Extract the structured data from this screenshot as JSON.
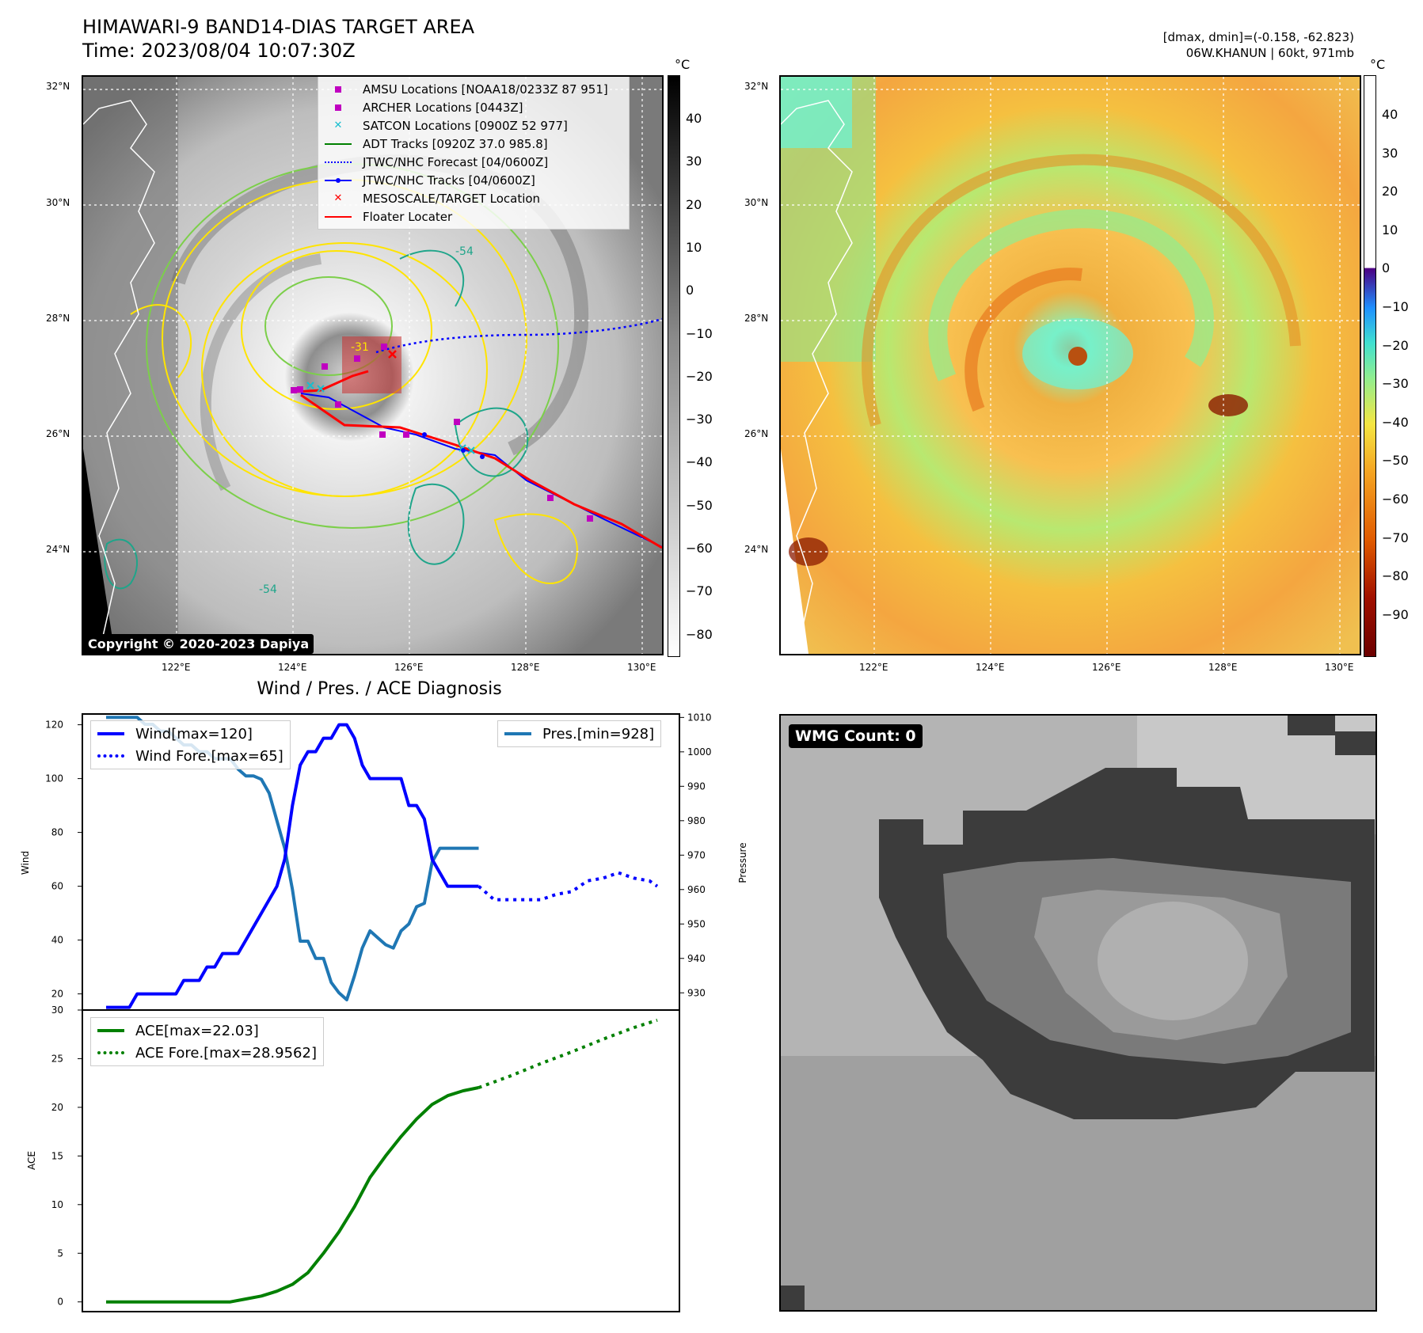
{
  "header": {
    "title_line1": "HIMAWARI-9 BAND14-DIAS TARGET AREA",
    "title_line2": "Time: 2023/08/04 10:07:30Z",
    "right_line1": "[dmax, dmin]=(-0.158, -62.823)",
    "right_line2": "06W.KHANUN | 60kt, 971mb"
  },
  "map": {
    "lat_labels": [
      "32°N",
      "30°N",
      "28°N",
      "26°N",
      "24°N"
    ],
    "lon_labels": [
      "122°E",
      "124°E",
      "126°E",
      "128°E",
      "130°E"
    ],
    "copyright": "Copyright © 2020-2023 Dapiya",
    "contour_labels": [
      "-31",
      "-54"
    ],
    "legend": [
      {
        "label": "AMSU Locations [NOAA18/0233Z 87 951]",
        "color": "#c000c0",
        "symbol": "square"
      },
      {
        "label": "ARCHER Locations [0443Z]",
        "color": "#c000c0",
        "symbol": "square"
      },
      {
        "label": "SATCON Locations [0900Z 52 977]",
        "color": "#17becf",
        "symbol": "x"
      },
      {
        "label": "ADT Tracks [0920Z 37.0 985.8]",
        "color": "#008000",
        "symbol": "line"
      },
      {
        "label": "JTWC/NHC Forecast [04/0600Z]",
        "color": "#0000ff",
        "symbol": "dotted"
      },
      {
        "label": "JTWC/NHC Tracks [04/0600Z]",
        "color": "#0000ff",
        "symbol": "line-dot"
      },
      {
        "label": "MESOSCALE/TARGET Location",
        "color": "#ff0000",
        "symbol": "x"
      },
      {
        "label": "Floater Locater",
        "color": "#ff0000",
        "symbol": "line"
      }
    ]
  },
  "colorbar_gray": {
    "unit": "°C",
    "ticks": [
      "40",
      "30",
      "20",
      "10",
      "0",
      "−10",
      "−20",
      "−30",
      "−40",
      "−50",
      "−60",
      "−70",
      "−80"
    ]
  },
  "colorbar_color": {
    "unit": "°C",
    "ticks": [
      "40",
      "30",
      "20",
      "10",
      "0",
      "−10",
      "−20",
      "−30",
      "−40",
      "−50",
      "−60",
      "−70",
      "−80",
      "−90"
    ]
  },
  "wmg": {
    "label": "WMG Count: 0"
  },
  "colors": {
    "wind": "#0000ff",
    "pressure": "#1f77b4",
    "ace": "#008000",
    "track_red": "#ff0000",
    "contour_yellow": "#ffe400",
    "contour_green": "#7ccf4a",
    "contour_teal": "#1fa58a"
  },
  "chart_data": [
    {
      "type": "line",
      "title": "Wind / Pres. / ACE Diagnosis",
      "ylabel": "Wind",
      "ylabel_right": "Pressure",
      "ylim": [
        14,
        124
      ],
      "ylim_right": [
        925,
        1011
      ],
      "y_ticks": [
        20,
        40,
        60,
        80,
        100,
        120
      ],
      "y_ticks_right": [
        930,
        940,
        950,
        960,
        970,
        980,
        990,
        1000,
        1010
      ],
      "x": [
        0,
        1,
        2,
        3,
        4,
        5,
        6,
        7,
        8,
        9,
        10,
        11,
        12,
        13,
        14,
        15,
        16,
        17,
        18,
        19,
        20,
        21,
        22,
        23,
        24,
        25,
        26,
        27,
        28,
        29,
        30,
        31,
        32,
        33,
        34,
        35,
        36,
        37,
        38,
        39,
        40,
        41,
        42,
        43,
        44,
        45,
        46,
        47,
        48,
        49,
        50,
        51,
        52,
        53,
        54,
        55,
        56,
        57,
        58,
        59,
        60,
        61,
        62,
        63,
        64,
        65,
        66,
        67,
        68,
        69,
        70,
        71
      ],
      "series": [
        {
          "name": "Wind[max=120]",
          "style": "solid",
          "color": "#0000ff",
          "x": [
            0,
            1,
            2,
            3,
            4,
            5,
            6,
            7,
            8,
            9,
            10,
            11,
            12,
            13,
            14,
            15,
            16,
            17,
            18,
            19,
            20,
            21,
            22,
            23,
            24,
            25,
            26,
            27,
            28,
            29,
            30,
            31,
            32,
            33,
            34,
            35,
            36,
            37,
            38,
            39,
            40,
            41,
            42,
            43,
            44,
            45,
            46,
            47,
            48
          ],
          "values": [
            15,
            15,
            15,
            15,
            20,
            20,
            20,
            20,
            20,
            20,
            25,
            25,
            25,
            30,
            30,
            35,
            35,
            35,
            40,
            45,
            50,
            55,
            60,
            70,
            90,
            105,
            110,
            110,
            115,
            115,
            120,
            120,
            115,
            105,
            100,
            100,
            100,
            100,
            100,
            90,
            90,
            85,
            70,
            65,
            60,
            60,
            60,
            60,
            60
          ]
        },
        {
          "name": "Wind Fore.[max=65]",
          "style": "dotted",
          "color": "#0000ff",
          "x": [
            48,
            50,
            52,
            54,
            56,
            58,
            60,
            62,
            64,
            66,
            68,
            70,
            71
          ],
          "values": [
            60,
            55,
            55,
            55,
            55,
            57,
            58,
            62,
            63,
            65,
            63,
            62,
            60
          ]
        },
        {
          "name": "Pres.[min=928]",
          "style": "solid",
          "color": "#1f77b4",
          "axis": "right",
          "x": [
            0,
            1,
            2,
            3,
            4,
            5,
            6,
            7,
            8,
            9,
            10,
            11,
            12,
            13,
            14,
            15,
            16,
            17,
            18,
            19,
            20,
            21,
            22,
            23,
            24,
            25,
            26,
            27,
            28,
            29,
            30,
            31,
            32,
            33,
            34,
            35,
            36,
            37,
            38,
            39,
            40,
            41,
            42,
            43,
            44,
            45,
            46,
            47,
            48
          ],
          "values": [
            1010,
            1010,
            1010,
            1010,
            1010,
            1008,
            1008,
            1006,
            1006,
            1004,
            1002,
            1002,
            1000,
            1000,
            998,
            998,
            998,
            995,
            993,
            993,
            992,
            988,
            980,
            972,
            960,
            945,
            945,
            940,
            940,
            933,
            930,
            928,
            935,
            943,
            948,
            946,
            944,
            943,
            948,
            950,
            955,
            956,
            968,
            972,
            972,
            972,
            972,
            972,
            972
          ]
        }
      ]
    },
    {
      "type": "line",
      "ylabel": "ACE",
      "ylim": [
        -1,
        30
      ],
      "y_ticks": [
        0,
        5,
        10,
        15,
        20,
        25,
        30
      ],
      "series": [
        {
          "name": "ACE[max=22.03]",
          "style": "solid",
          "color": "#008000",
          "x": [
            0,
            4,
            8,
            12,
            16,
            18,
            20,
            22,
            24,
            26,
            28,
            30,
            32,
            34,
            36,
            38,
            40,
            42,
            44,
            46,
            48
          ],
          "values": [
            0,
            0,
            0,
            0,
            0,
            0.3,
            0.6,
            1.1,
            1.8,
            3,
            5,
            7.2,
            9.8,
            12.8,
            15,
            17,
            18.8,
            20.3,
            21.2,
            21.7,
            22.03
          ]
        },
        {
          "name": "ACE Fore.[max=28.9562]",
          "style": "dotted",
          "color": "#008000",
          "x": [
            48,
            52,
            56,
            60,
            64,
            68,
            71
          ],
          "values": [
            22.03,
            23.2,
            24.5,
            25.7,
            27,
            28.2,
            28.96
          ]
        }
      ]
    }
  ]
}
